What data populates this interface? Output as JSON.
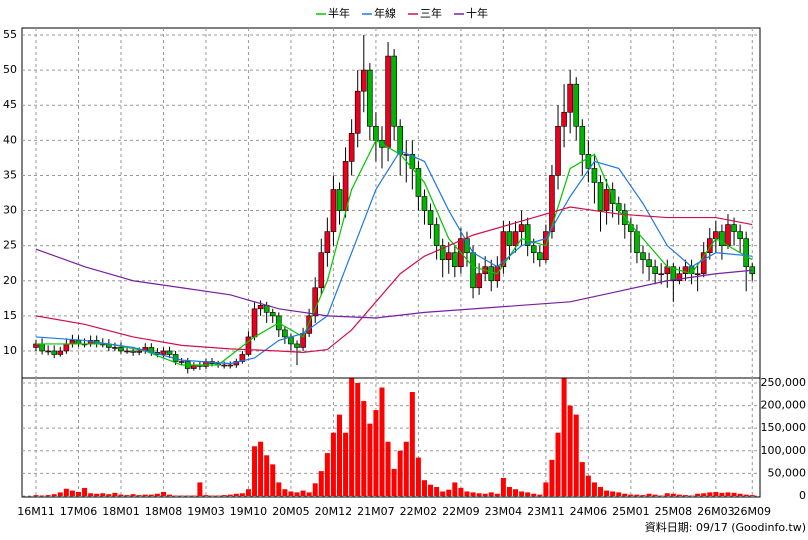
{
  "chart_data": {
    "type": "candlestick",
    "categories": [
      "16M11",
      null,
      null,
      null,
      null,
      null,
      null,
      "17M06",
      null,
      null,
      null,
      null,
      null,
      null,
      "18M01",
      null,
      null,
      null,
      null,
      null,
      null,
      "18M08",
      null,
      null,
      null,
      null,
      null,
      null,
      "19M03",
      null,
      null,
      null,
      null,
      null,
      null,
      "19M10",
      null,
      null,
      null,
      null,
      null,
      null,
      "20M05",
      null,
      null,
      null,
      null,
      null,
      null,
      "20M12",
      null,
      null,
      null,
      null,
      null,
      null,
      "21M07",
      null,
      null,
      null,
      null,
      null,
      null,
      "22M02",
      null,
      null,
      null,
      null,
      null,
      null,
      "22M09",
      null,
      null,
      null,
      null,
      null,
      null,
      "23M04",
      null,
      null,
      null,
      null,
      null,
      null,
      "23M11",
      null,
      null,
      null,
      null,
      null,
      null,
      "24M06",
      null,
      null,
      null,
      null,
      null,
      null,
      "25M01",
      null,
      null,
      null,
      null,
      null,
      null,
      "25M08",
      null,
      null,
      null,
      null,
      null,
      null,
      "26M03",
      null,
      null,
      null,
      null,
      null,
      "26M09"
    ],
    "open": [
      10.5,
      11,
      10,
      10,
      9.5,
      10,
      11,
      11.5,
      11,
      11,
      11.5,
      11,
      11,
      10.5,
      10.5,
      10,
      10,
      9.8,
      10,
      10.5,
      9.8,
      9.5,
      10,
      9.5,
      8.5,
      8.5,
      7.5,
      8,
      7.8,
      8.5,
      8.2,
      8,
      8,
      8,
      8.5,
      9.5,
      12,
      16,
      16.5,
      15.5,
      15,
      13,
      12,
      11,
      10.5,
      12.5,
      15,
      19,
      24,
      27,
      33,
      30,
      37,
      41,
      47,
      50,
      42,
      40,
      39,
      52,
      42,
      38,
      38,
      36,
      32,
      30,
      28,
      25,
      23,
      24,
      22,
      26,
      24,
      19,
      21,
      22,
      20,
      22,
      27,
      25,
      27,
      28,
      25,
      24,
      23,
      27,
      35,
      42,
      44,
      48,
      42,
      38,
      36,
      34,
      30,
      33,
      31,
      30,
      28,
      27,
      24,
      23,
      22,
      21,
      21,
      22,
      20,
      21,
      22,
      21,
      21,
      24,
      26,
      27,
      25,
      28,
      27,
      26,
      22
    ],
    "high": [
      11.6,
      11.8,
      10.8,
      10.8,
      10.6,
      11.8,
      12.3,
      12.2,
      11.8,
      12.2,
      12.2,
      11.8,
      11.7,
      11.2,
      11.2,
      10.7,
      10.6,
      10.5,
      11.1,
      11.1,
      10.4,
      10.5,
      10.6,
      10,
      9,
      9,
      8.4,
      8.5,
      8.9,
      9,
      8.6,
      8.5,
      8.5,
      8.9,
      10,
      12.8,
      17,
      17.2,
      17,
      16,
      15.5,
      13.5,
      12.5,
      11.5,
      13.3,
      16,
      20.5,
      26,
      29,
      35,
      34,
      39,
      43,
      50,
      55,
      51,
      44,
      42,
      54,
      53,
      43,
      40,
      40,
      37,
      33,
      31,
      29,
      26,
      25.5,
      25,
      27.5,
      27,
      25,
      22.5,
      23.5,
      23,
      23.5,
      28.5,
      28.5,
      28.5,
      30,
      29,
      26,
      25,
      28,
      36.5,
      45,
      48,
      50,
      49,
      43,
      40,
      38,
      35,
      34.5,
      34,
      32,
      31,
      29,
      28,
      25,
      24,
      23,
      22.5,
      23,
      22.5,
      22,
      23,
      23,
      22.5,
      25.5,
      27.5,
      28.5,
      28,
      29.5,
      29,
      28,
      27,
      22.5
    ],
    "low": [
      10,
      9.5,
      9.4,
      9,
      9.2,
      9.6,
      10.5,
      10.6,
      10.5,
      10.6,
      10.5,
      10.5,
      10,
      10,
      9.6,
      9.6,
      9.3,
      9.4,
      9.6,
      9.3,
      9.1,
      9.1,
      9,
      8,
      8,
      6.8,
      7.2,
      7.3,
      7.4,
      7.8,
      7.6,
      7.5,
      7.5,
      7.6,
      8.2,
      9.2,
      11.5,
      15,
      14,
      14,
      12,
      11,
      10,
      8,
      10,
      12,
      14,
      18,
      22,
      25,
      28,
      29,
      35,
      39,
      44,
      40,
      37,
      36,
      37,
      40,
      35,
      34,
      33,
      30,
      28,
      26,
      23,
      20.5,
      21,
      20.5,
      21,
      22,
      17.5,
      18,
      20,
      18.5,
      19,
      21,
      23,
      24,
      25,
      23.5,
      22.5,
      22,
      22.5,
      26,
      33,
      39,
      41,
      40,
      35,
      34,
      31,
      27,
      28,
      29,
      28,
      26,
      24,
      22.5,
      21,
      20,
      19.5,
      19.5,
      19,
      17,
      19.5,
      20,
      19.5,
      18.5,
      20.5,
      23,
      24,
      23,
      24.5,
      25,
      24,
      18.5,
      20
    ],
    "close": [
      11,
      10,
      10,
      9.5,
      10,
      11,
      11.5,
      11,
      11,
      11.5,
      11,
      11,
      10.5,
      10.5,
      10,
      10,
      9.8,
      10,
      10.5,
      9.8,
      9.5,
      10,
      9.5,
      8.5,
      8.5,
      7.5,
      8,
      7.8,
      8.5,
      8.2,
      8,
      8,
      8,
      8.5,
      9.5,
      12,
      16,
      16.5,
      15.5,
      15,
      13,
      12,
      11,
      10.5,
      12.5,
      15,
      19,
      24,
      27,
      33,
      30,
      37,
      41,
      47,
      50,
      42,
      40,
      39,
      52,
      42,
      38,
      38,
      36,
      32,
      30,
      28,
      25,
      23,
      24,
      22,
      26,
      24,
      19,
      21,
      22,
      20,
      22,
      27,
      25,
      27,
      28,
      25,
      24,
      23,
      27,
      35,
      42,
      44,
      48,
      42,
      38,
      36,
      34,
      30,
      33,
      31,
      30,
      28,
      27,
      24,
      23,
      22,
      21,
      21,
      22,
      20,
      21,
      22,
      21,
      21,
      24,
      26,
      27,
      25,
      28,
      27,
      26,
      22,
      21
    ],
    "up_color": "#e8001c",
    "down_color": "#00b400",
    "ylim": [
      6.15,
      56
    ],
    "yticks": [
      10,
      15,
      20,
      25,
      30,
      35,
      40,
      45,
      50,
      55
    ],
    "grid": true,
    "ma_lines": [
      {
        "name": "半年",
        "color": "#00c800",
        "x": [
          0,
          6,
          12,
          18,
          24,
          30,
          36,
          40,
          44,
          48,
          52,
          56,
          60,
          64,
          68,
          72,
          76,
          80,
          84,
          88,
          92,
          96,
          100,
          104,
          108,
          112,
          118
        ],
        "values": [
          11,
          11,
          11,
          10,
          8,
          8,
          12,
          14,
          12,
          20,
          33,
          40,
          38,
          34,
          26,
          22,
          21,
          26,
          25,
          36,
          38,
          30,
          26,
          22,
          21,
          26,
          23
        ]
      },
      {
        "name": "年線",
        "color": "#1e78e6",
        "x": [
          0,
          8,
          16,
          24,
          32,
          36,
          40,
          44,
          48,
          52,
          56,
          60,
          64,
          68,
          72,
          76,
          80,
          84,
          88,
          92,
          96,
          100,
          104,
          108,
          112,
          118
        ],
        "values": [
          12,
          11.5,
          10.5,
          8.7,
          8.2,
          9,
          11.5,
          12.5,
          15,
          24,
          33,
          38.5,
          37,
          30,
          24,
          22,
          25,
          26,
          32,
          37,
          36,
          31,
          25,
          22,
          24,
          23.5
        ]
      },
      {
        "name": "三年",
        "color": "#d0104c",
        "x": [
          0,
          8,
          16,
          24,
          32,
          40,
          44,
          48,
          52,
          56,
          60,
          64,
          68,
          72,
          80,
          88,
          96,
          104,
          112,
          118
        ],
        "values": [
          15,
          13.8,
          12,
          10.8,
          10.3,
          10,
          9.8,
          10.2,
          13,
          17,
          21,
          23.5,
          25,
          26.5,
          28.5,
          30.5,
          29.5,
          29,
          29,
          28
        ]
      },
      {
        "name": "十年",
        "color": "#7a1fa0",
        "x": [
          0,
          8,
          16,
          24,
          32,
          40,
          48,
          56,
          64,
          72,
          80,
          88,
          96,
          104,
          112,
          118
        ],
        "values": [
          24.5,
          22,
          20,
          19,
          18,
          16,
          15,
          14.7,
          15.5,
          16,
          16.5,
          17,
          18.5,
          20,
          21,
          21.5
        ]
      }
    ],
    "volume": {
      "type": "bar",
      "color": "#ff0000",
      "values": [
        2000,
        1000,
        2000,
        4000,
        8000,
        16000,
        12000,
        9000,
        18000,
        6000,
        5000,
        6000,
        4000,
        7000,
        3000,
        2000,
        4000,
        2000,
        3000,
        3000,
        5000,
        9000,
        3000,
        1000,
        1000,
        1000,
        1000,
        30000,
        2000,
        1000,
        1000,
        2000,
        3000,
        5000,
        6000,
        15000,
        110000,
        120000,
        90000,
        70000,
        30000,
        15000,
        10000,
        8000,
        12000,
        8000,
        28000,
        55000,
        95000,
        140000,
        180000,
        140000,
        260000,
        250000,
        210000,
        160000,
        190000,
        240000,
        120000,
        60000,
        100000,
        120000,
        230000,
        85000,
        35000,
        25000,
        20000,
        10000,
        14000,
        30000,
        18000,
        10000,
        8000,
        6000,
        5000,
        8000,
        5000,
        40000,
        20000,
        15000,
        10000,
        8000,
        5000,
        3000,
        30000,
        80000,
        140000,
        260000,
        200000,
        180000,
        75000,
        45000,
        30000,
        20000,
        12000,
        10000,
        8000,
        5000,
        3000,
        3000,
        2000,
        5000,
        3000,
        1000,
        6000,
        5000,
        3000,
        2000,
        1000,
        5000,
        6000,
        8000,
        9000,
        7000,
        8000,
        7000,
        5000,
        3000,
        2000
      ],
      "ylim": [
        0,
        261000
      ],
      "yticks": [
        0,
        {
          "value": 50000,
          "label": "50,000"
        },
        {
          "value": 100000,
          "label": "100,000"
        },
        {
          "value": 150000,
          "label": "150,000"
        },
        {
          "value": 200000,
          "label": "200,000"
        },
        {
          "value": 250000,
          "label": "250,000"
        }
      ]
    },
    "footnote": "資料日期: 09/17 (Goodinfo.tw)"
  }
}
